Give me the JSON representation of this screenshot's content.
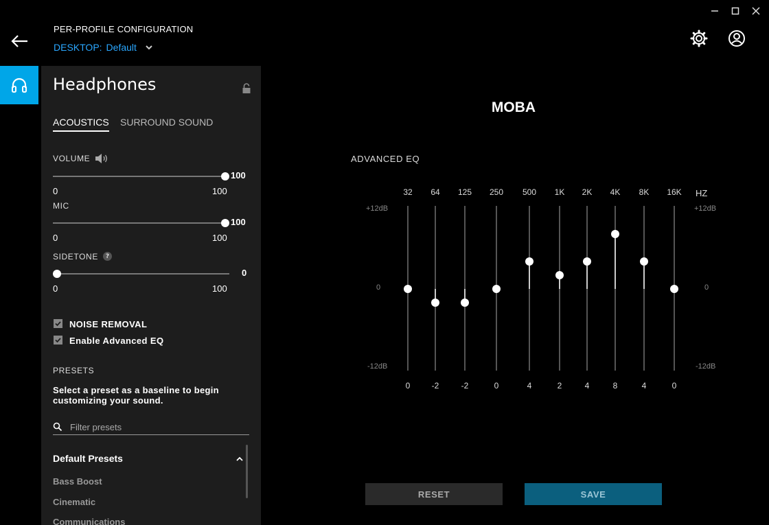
{
  "header": {
    "caption": "PER-PROFILE CONFIGURATION",
    "profile_prefix": "DESKTOP:",
    "profile_name": "Default"
  },
  "panel": {
    "title": "Headphones",
    "tabs": [
      {
        "label": "ACOUSTICS",
        "active": true
      },
      {
        "label": "SURROUND SOUND",
        "active": false
      }
    ],
    "sliders": [
      {
        "label": "VOLUME",
        "value": "100",
        "min": "0",
        "max": "100",
        "fraction": 1.0
      },
      {
        "label": "MIC",
        "value": "100",
        "min": "0",
        "max": "100",
        "fraction": 1.0
      },
      {
        "label": "SIDETONE",
        "value": "0",
        "min": "0",
        "max": "100",
        "fraction": 0.0
      }
    ],
    "sidetone_help": "?",
    "checkboxes": [
      {
        "label": "NOISE REMOVAL",
        "checked": true
      },
      {
        "label": "Enable Advanced EQ",
        "checked": true
      }
    ],
    "presets_heading": "PRESETS",
    "presets_description": "Select a preset as a baseline to begin customizing your sound.",
    "filter_placeholder": "Filter presets",
    "group_label": "Default Presets",
    "presets": [
      "Bass Boost",
      "Cinematic",
      "Communications"
    ]
  },
  "main": {
    "preset_name": "MOBA",
    "eq_heading": "ADVANCED EQ",
    "unit": "HZ",
    "db_top": "+12dB",
    "db_mid": "0",
    "db_bottom": "-12dB",
    "bands": [
      {
        "freq": "32",
        "value": 0
      },
      {
        "freq": "64",
        "value": -2
      },
      {
        "freq": "125",
        "value": -2
      },
      {
        "freq": "250",
        "value": 0
      },
      {
        "freq": "500",
        "value": 4
      },
      {
        "freq": "1K",
        "value": 2
      },
      {
        "freq": "2K",
        "value": 4
      },
      {
        "freq": "4K",
        "value": 8
      },
      {
        "freq": "8K",
        "value": 4
      },
      {
        "freq": "16K",
        "value": 0
      }
    ],
    "reset_label": "RESET",
    "save_label": "SAVE"
  },
  "colors": {
    "accent": "#00a6e8",
    "link": "#2aa7ff",
    "save_bg": "#0b5f7e"
  },
  "icons": [
    "minimize-icon",
    "maximize-icon",
    "close-icon",
    "back-arrow-icon",
    "chevron-down-icon",
    "gear-icon",
    "user-icon",
    "headphones-icon",
    "lock-icon",
    "speaker-icon",
    "check-icon",
    "search-icon",
    "chevron-up-icon"
  ]
}
